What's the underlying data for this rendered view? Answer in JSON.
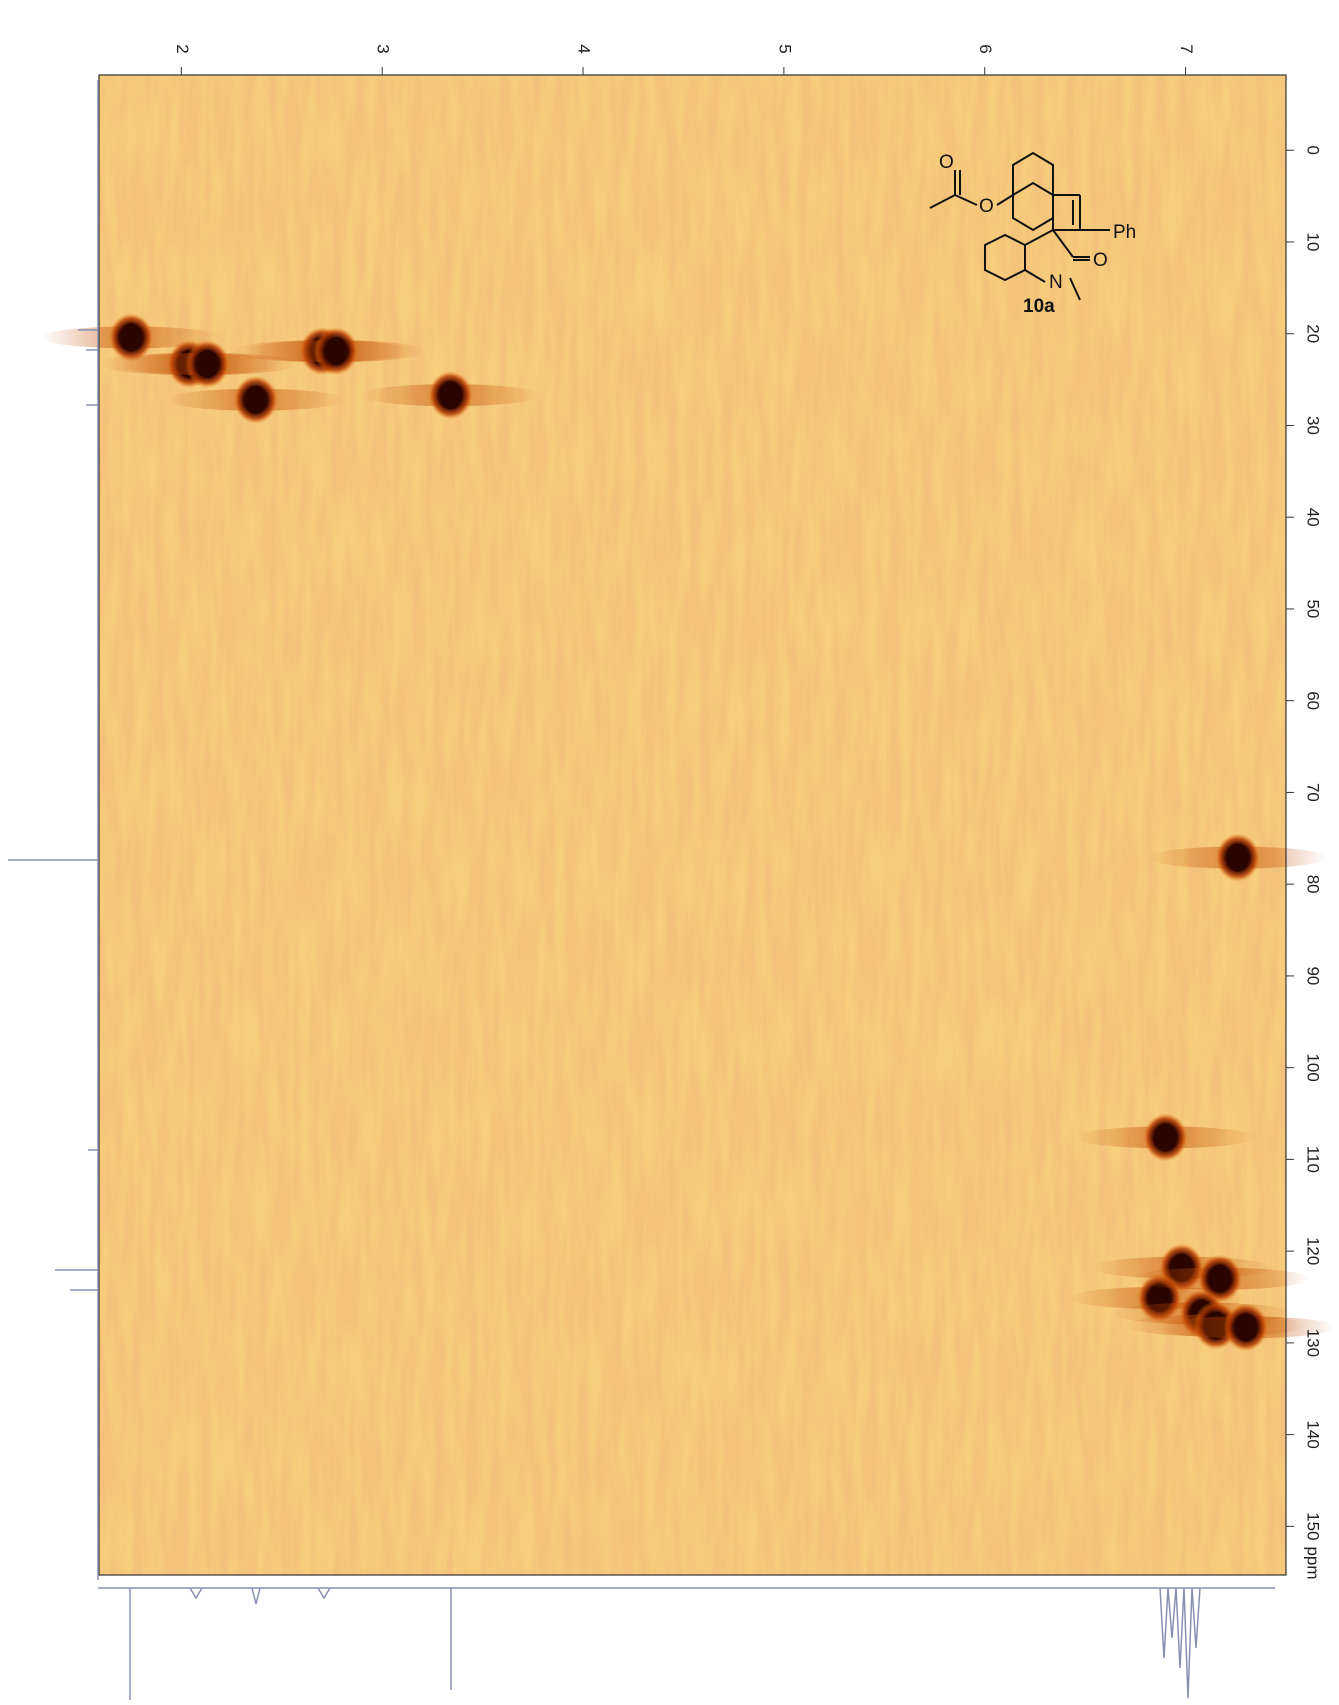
{
  "chart_data": {
    "type": "nmr2d",
    "x_unit": "ppm",
    "xlim": [
      1.59,
      7.5
    ],
    "xticks": [
      2,
      3,
      4,
      5,
      6,
      7
    ],
    "ylim": [
      -8.2,
      155.3
    ],
    "yticks": [
      0,
      10,
      20,
      30,
      40,
      50,
      60,
      70,
      80,
      90,
      100,
      110,
      120,
      130,
      140,
      150
    ],
    "y_unit": "ppm",
    "peak_color": "#2a0500",
    "background_color": "#f4c27a",
    "x": [
      1.75,
      2.04,
      2.13,
      2.7,
      2.77,
      2.37,
      3.34,
      7.26,
      6.9,
      6.98,
      6.87,
      7.17,
      7.08,
      7.15,
      7.3
    ],
    "values": [
      20.4,
      23.3,
      23.3,
      21.9,
      21.9,
      27.2,
      26.7,
      77.1,
      107.6,
      121.8,
      125.1,
      123.0,
      126.8,
      128.1,
      128.3
    ]
  },
  "structure": {
    "label": "10a",
    "atoms": [
      "O",
      "O",
      "Ph",
      "O",
      "N"
    ]
  }
}
